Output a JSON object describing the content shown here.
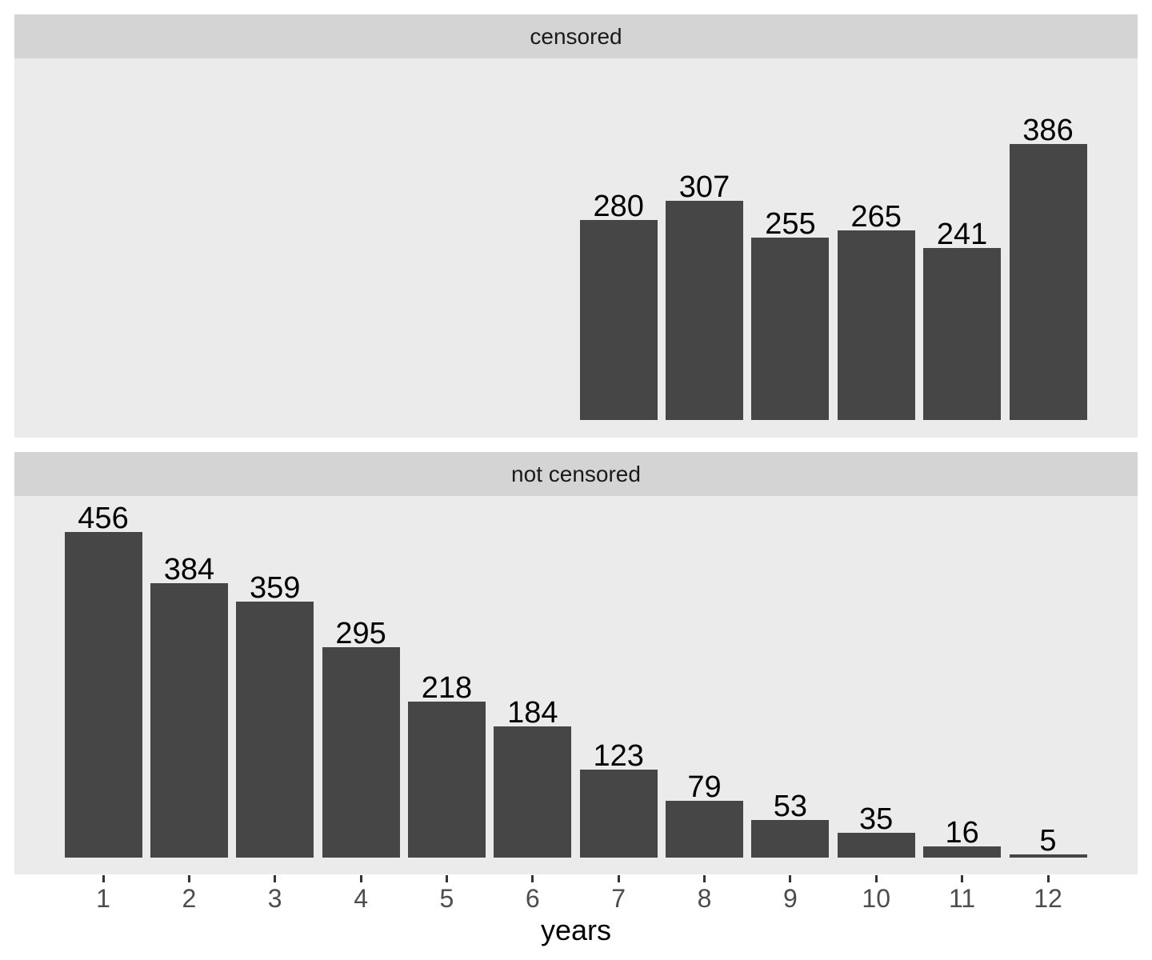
{
  "chart_data": {
    "type": "bar",
    "title": "",
    "xlabel": "years",
    "ylabel": "",
    "grid": false,
    "legend": "none",
    "facet_layout": "stacked-rows",
    "x_ticks": [
      "1",
      "2",
      "3",
      "4",
      "5",
      "6",
      "7",
      "8",
      "9",
      "10",
      "11",
      "12"
    ],
    "ylim": [
      0,
      506
    ],
    "bar_labels_shown": true,
    "facets": [
      {
        "label": "censored",
        "categories": [
          7,
          8,
          9,
          10,
          11,
          12
        ],
        "values": [
          280,
          307,
          255,
          265,
          241,
          386
        ]
      },
      {
        "label": "not censored",
        "categories": [
          1,
          2,
          3,
          4,
          5,
          6,
          7,
          8,
          9,
          10,
          11,
          12
        ],
        "values": [
          456,
          384,
          359,
          295,
          218,
          184,
          123,
          79,
          53,
          35,
          16,
          5
        ]
      }
    ],
    "colors": {
      "bar": "#464646",
      "panel_background": "#EBEBEB",
      "strip_background": "#D4D4D4",
      "strip_text": "#1A1A1A",
      "axis_text": "#4D4D4D",
      "axis_tick": "#333333",
      "bar_label": "#000000",
      "axis_title": "#000000",
      "figure_background": "#FFFFFF"
    }
  }
}
